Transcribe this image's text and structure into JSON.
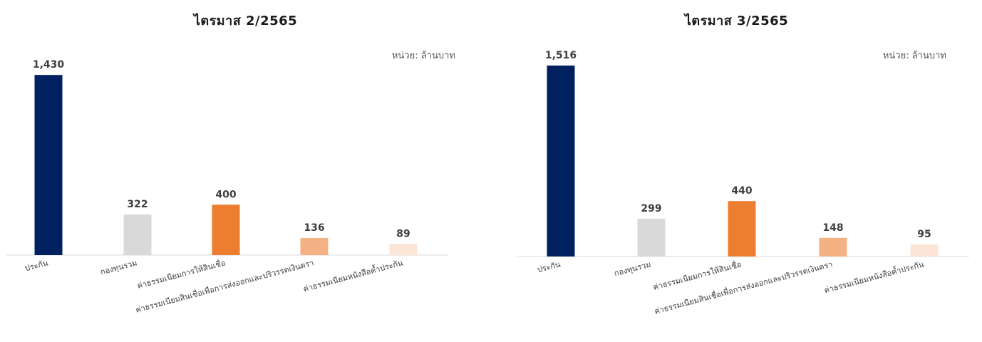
{
  "charts_meta": {
    "unit_label": "หน่วย: ล้านบาท"
  },
  "chart_data": [
    {
      "type": "bar",
      "title": "ไตรมาส 2/2565",
      "categories": [
        "ประกัน",
        "กองทุนรวม",
        "ค่าธรรมเนียมการให้สินเชื่อ",
        "ค่าธรรมเนียมสินเชื่อเพื่อการส่งออกและปริวรรตเงินตรา",
        "ค่าธรรมเนียมหนังสือค้ำประกัน"
      ],
      "values": [
        1430,
        322,
        400,
        136,
        89
      ],
      "value_labels": [
        "1,430",
        "322",
        "400",
        "136",
        "89"
      ],
      "colors": [
        "#002060",
        "#D9D9D9",
        "#ED7D31",
        "#F4B183",
        "#FBE5D6"
      ],
      "xlabel": "",
      "ylabel": "",
      "ylim": [
        0,
        1516
      ]
    },
    {
      "type": "bar",
      "title": "ไตรมาส 3/2565",
      "categories": [
        "ประกัน",
        "กองทุนรวม",
        "ค่าธรรมเนียมการให้สินเชื่อ",
        "ค่าธรรมเนียมสินเชื่อเพื่อการส่งออกและปริวรรตเงินตรา",
        "ค่าธรรมเนียมหนังสือค้ำประกัน"
      ],
      "values": [
        1516,
        299,
        440,
        148,
        95
      ],
      "value_labels": [
        "1,516",
        "299",
        "440",
        "148",
        "95"
      ],
      "colors": [
        "#002060",
        "#D9D9D9",
        "#ED7D31",
        "#F4B183",
        "#FBE5D6"
      ],
      "xlabel": "",
      "ylabel": "",
      "ylim": [
        0,
        1516
      ]
    }
  ]
}
